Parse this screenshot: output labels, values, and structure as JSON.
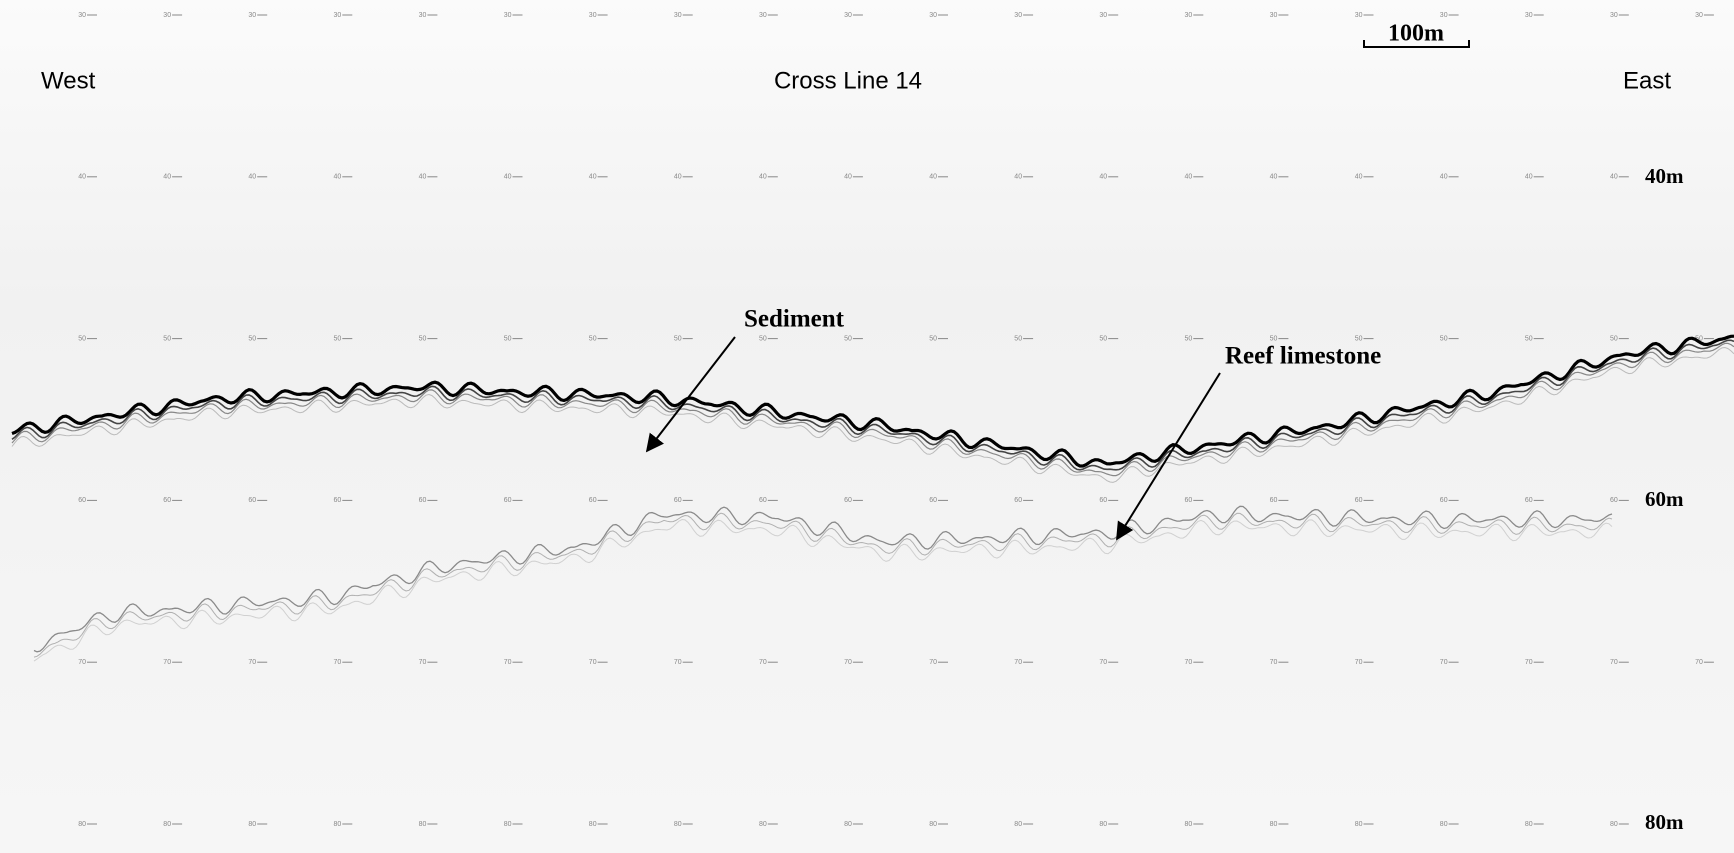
{
  "header": {
    "title": "Cross Line 14",
    "left": "West",
    "right": "East",
    "scale_bar": "100m"
  },
  "depth_ticks": [
    30,
    40,
    50,
    60,
    70,
    80
  ],
  "depth_labels": [
    "40m",
    "60m",
    "80m"
  ],
  "annotations": [
    {
      "label": "Sediment"
    },
    {
      "label": "Reef limestone"
    }
  ]
}
